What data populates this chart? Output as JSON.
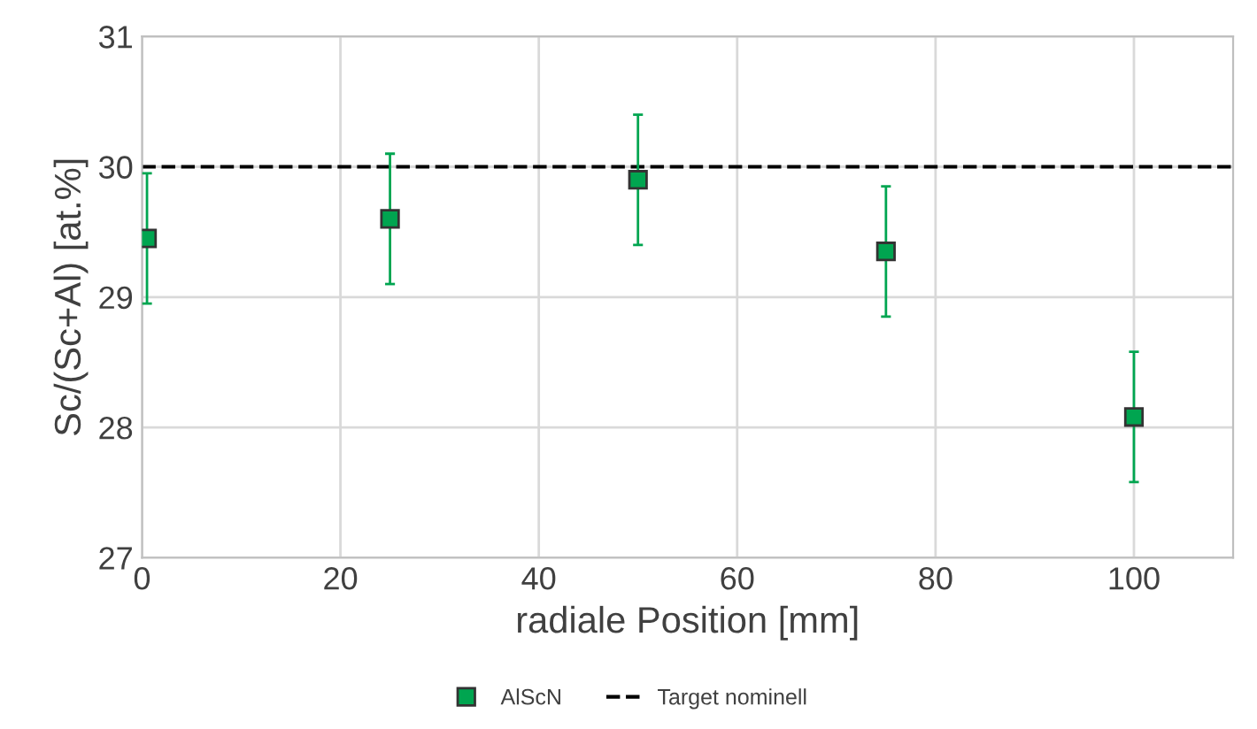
{
  "chart_data": {
    "type": "scatter",
    "xlabel": "radiale Position [mm]",
    "ylabel": "Sc/(Sc+Al) [at.%]",
    "x": [
      0.5,
      25,
      50,
      75,
      100
    ],
    "series": [
      {
        "name": "AlScN",
        "color": "#00a550",
        "values": [
          29.45,
          29.6,
          29.9,
          29.35,
          28.08
        ],
        "errors": [
          0.5,
          0.5,
          0.5,
          0.5,
          0.5
        ]
      }
    ],
    "ref_lines": [
      {
        "axis": "y",
        "value": 30,
        "label": "Target nominell",
        "color": "#000000",
        "line_style": "dashed"
      }
    ],
    "xlim": [
      0,
      110
    ],
    "xticks": [
      0,
      20,
      40,
      60,
      80,
      100
    ],
    "ylim": [
      27,
      31
    ],
    "yticks": [
      27,
      28,
      29,
      30,
      31
    ],
    "grid": true,
    "legend": "bottom",
    "marker": "square"
  }
}
